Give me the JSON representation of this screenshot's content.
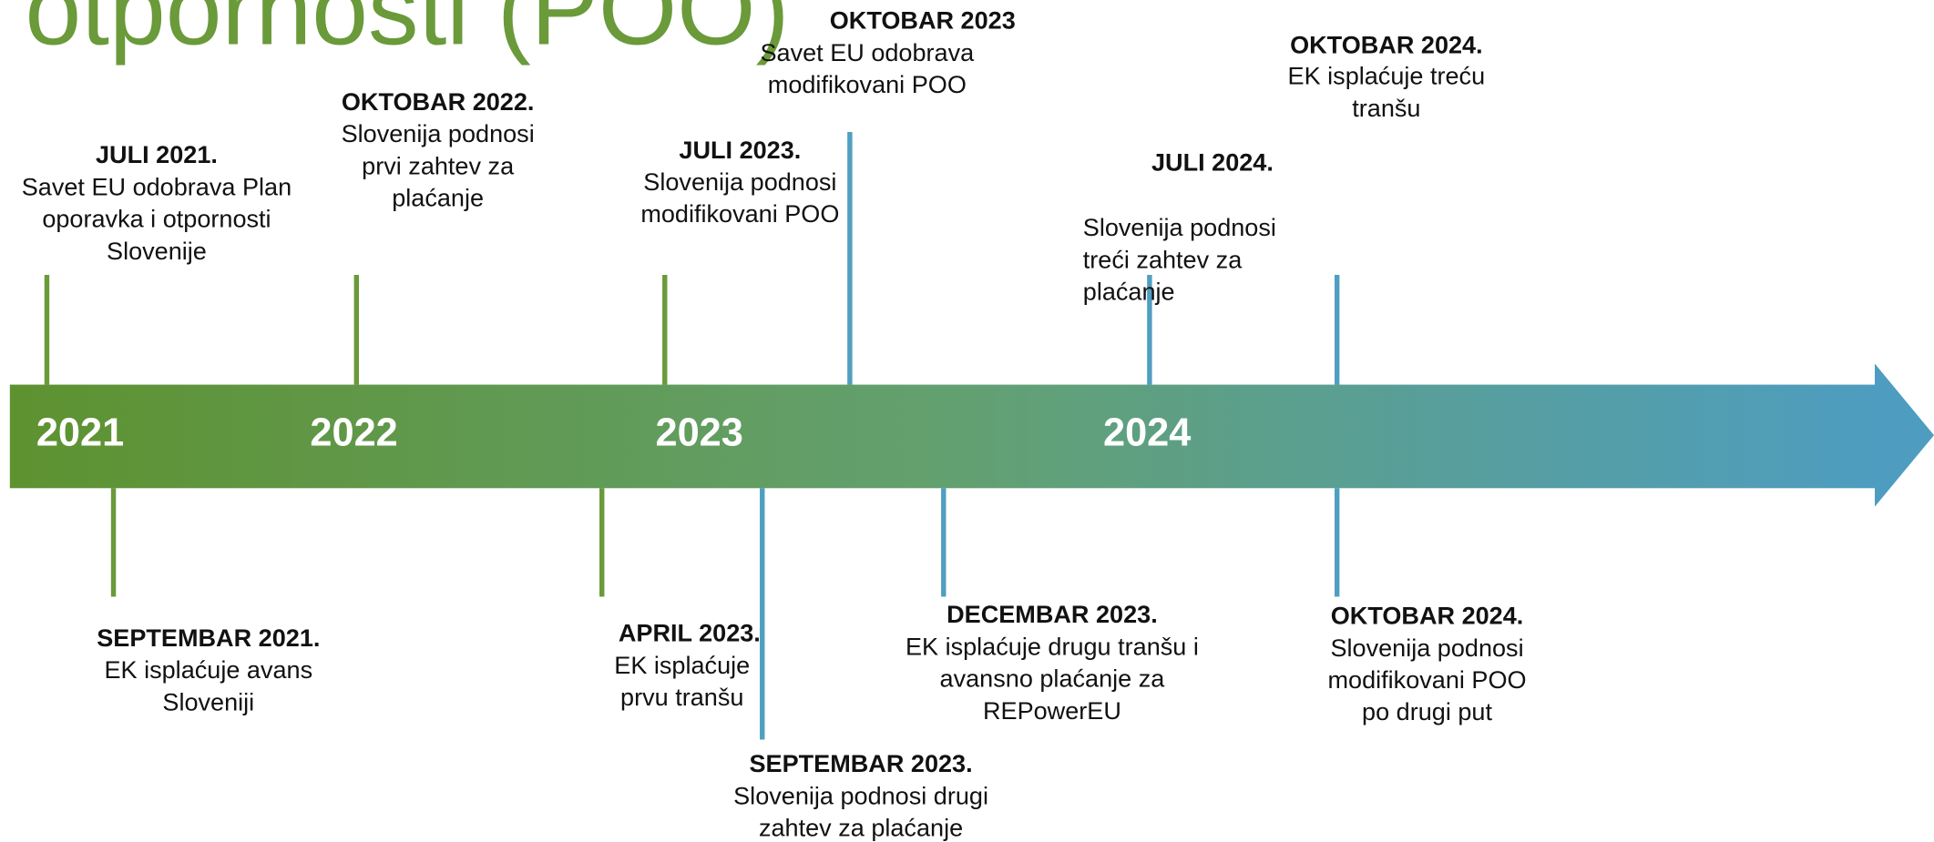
{
  "title": "otpornosti (POO)",
  "years": [
    "2021",
    "2022",
    "2023",
    "2024"
  ],
  "events": [
    {
      "date": "JULI 2021.",
      "lines": [
        "Savet EU odobrava Plan",
        "oporavka i otpornosti",
        "Slovenije"
      ]
    },
    {
      "date": "OKTOBAR 2022.",
      "lines": [
        "Slovenija podnosi",
        "prvi zahtev za",
        "plaćanje"
      ]
    },
    {
      "date": "JULI 2023.",
      "lines": [
        "Slovenija podnosi",
        "modifikovani POO"
      ]
    },
    {
      "date": "OKTOBAR 2023",
      "lines": [
        "Savet EU odobrava",
        "modifikovani POO"
      ]
    },
    {
      "date": "JULI 2024.",
      "lines": [
        "Slovenija podnosi",
        "treći zahtev za",
        "plaćanje"
      ]
    },
    {
      "date": "OKTOBAR 2024.",
      "lines": [
        "EK isplaćuje treću",
        "tranšu"
      ]
    },
    {
      "date": "SEPTEMBAR 2021.",
      "lines": [
        "EK isplaćuje avans",
        "Sloveniji"
      ]
    },
    {
      "date": "APRIL 2023.",
      "lines": [
        "EK isplaćuje",
        "prvu tranšu"
      ]
    },
    {
      "date": "SEPTEMBAR 2023.",
      "lines": [
        "Slovenija podnosi drugi",
        "zahtev za plaćanje"
      ]
    },
    {
      "date": "DECEMBAR 2023.",
      "lines": [
        "EK isplaćuje drugu tranšu i",
        "avansno plaćanje za",
        "REPowerEU"
      ]
    },
    {
      "date": "OKTOBAR 2024.",
      "lines": [
        "Slovenija podnosi",
        "modifikovani POO",
        "po drugi put"
      ]
    }
  ]
}
